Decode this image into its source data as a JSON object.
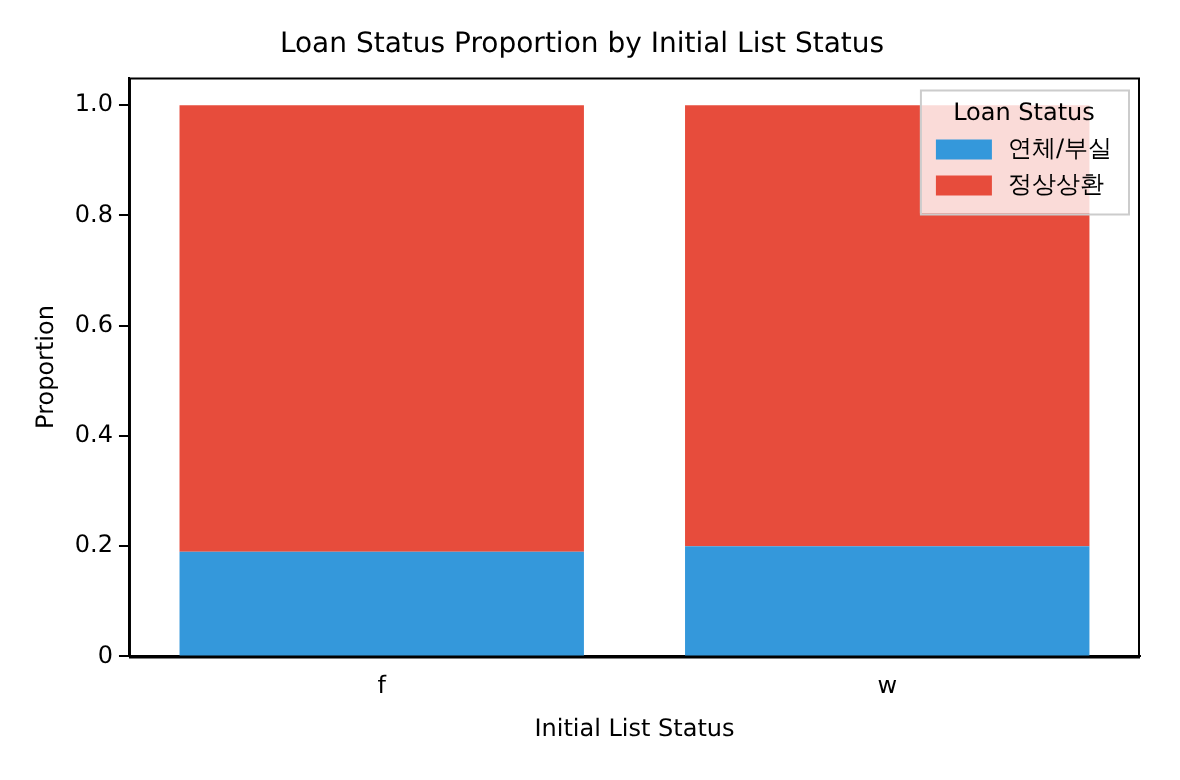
{
  "chart_data": {
    "type": "bar",
    "title": "Loan Status Proportion by Initial List Status",
    "xlabel": "Initial List Status",
    "ylabel": "Proportion",
    "legend_title": "Loan Status",
    "categories": [
      "f",
      "w"
    ],
    "stacked": true,
    "series": [
      {
        "name": "연체/부실",
        "color": "#3498db",
        "values": [
          0.19,
          0.2
        ]
      },
      {
        "name": "정상상환",
        "color": "#e74c3c",
        "values": [
          0.81,
          0.8
        ]
      }
    ],
    "ylim": [
      0,
      1.05
    ],
    "yticks": [
      0,
      {
        "value": 0.2,
        "label": "0.2"
      },
      {
        "value": 0.4,
        "label": "0.4"
      },
      {
        "value": 0.6,
        "label": "0.6"
      },
      {
        "value": 0.8,
        "label": "0.8"
      },
      {
        "value": 1,
        "label": "1.0"
      }
    ],
    "grid": false,
    "legend": "top right"
  }
}
